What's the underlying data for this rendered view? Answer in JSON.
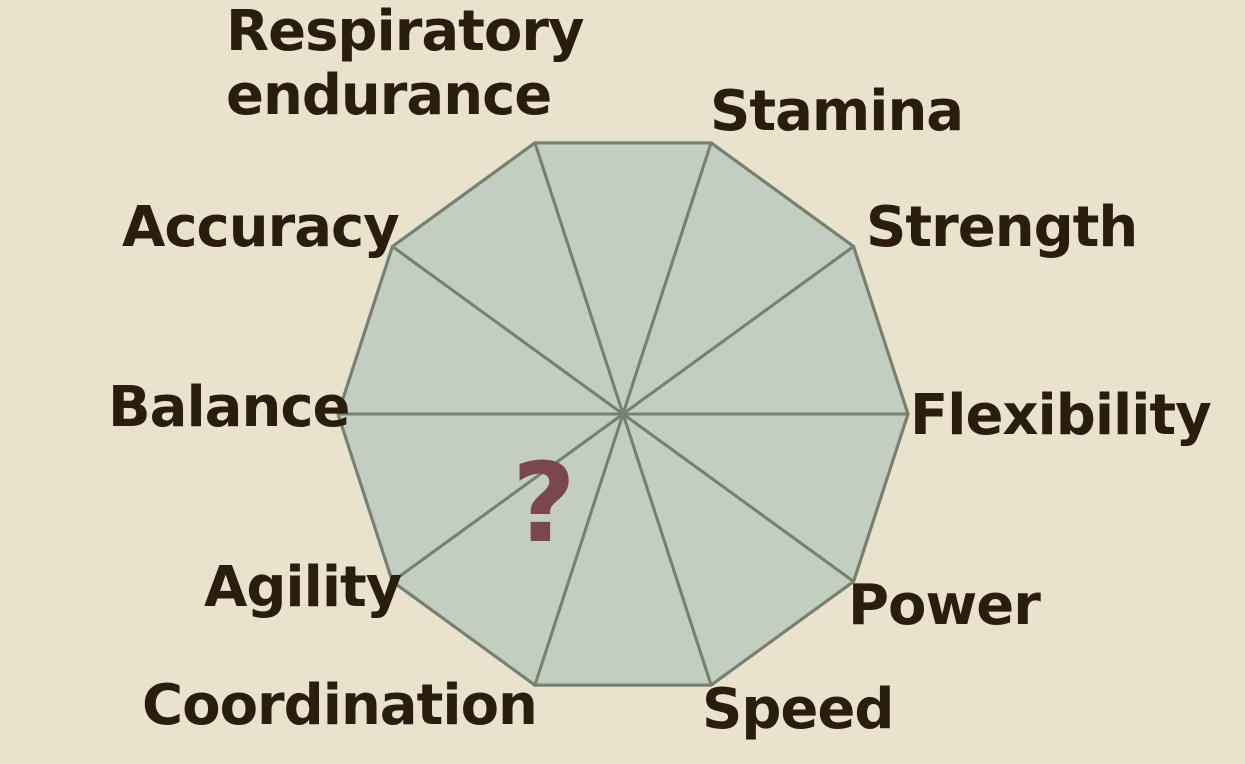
{
  "diagram": {
    "colors": {
      "background": "#e9e2cc",
      "fill": "#c3cdc0",
      "stroke": "#768271",
      "label": "#2a1d0c",
      "question_mark": "#7a4650"
    },
    "segments": [
      {
        "id": "respiratory",
        "label_lines": [
          "Respiratory",
          "endurance"
        ]
      },
      {
        "id": "stamina",
        "label_lines": [
          "Stamina"
        ]
      },
      {
        "id": "strength",
        "label_lines": [
          "Strength"
        ]
      },
      {
        "id": "flexibility",
        "label_lines": [
          "Flexibility"
        ]
      },
      {
        "id": "power",
        "label_lines": [
          "Power"
        ]
      },
      {
        "id": "speed",
        "label_lines": [
          "Speed"
        ]
      },
      {
        "id": "coordination",
        "label_lines": [
          "Coordination"
        ]
      },
      {
        "id": "agility",
        "label_lines": [
          "Agility"
        ]
      },
      {
        "id": "balance",
        "label_lines": [
          "Balance"
        ]
      },
      {
        "id": "accuracy",
        "label_lines": [
          "Accuracy"
        ]
      }
    ],
    "center_mark": "?"
  }
}
